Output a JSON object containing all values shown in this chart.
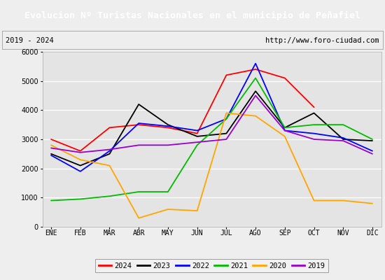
{
  "title": "Evolucion Nº Turistas Nacionales en el municipio de Peñafiel",
  "title_color": "#ffffff",
  "title_bg_color": "#4472c4",
  "subtitle_left": "2019 - 2024",
  "subtitle_right": "http://www.foro-ciudad.com",
  "months": [
    "ENE",
    "FEB",
    "MAR",
    "ABR",
    "MAY",
    "JUN",
    "JUL",
    "AGO",
    "SEP",
    "OCT",
    "NOV",
    "DIC"
  ],
  "series": {
    "2024": {
      "color": "#ff0000",
      "data": [
        3000,
        2600,
        3400,
        3500,
        3400,
        3200,
        5200,
        5400,
        5100,
        4100,
        null,
        null
      ]
    },
    "2023": {
      "color": "#000000",
      "data": [
        2500,
        2100,
        2500,
        4200,
        3500,
        3100,
        3200,
        4650,
        3400,
        3900,
        3000,
        2950
      ]
    },
    "2022": {
      "color": "#0000ff",
      "data": [
        2450,
        1900,
        2600,
        3550,
        3450,
        3300,
        3700,
        5600,
        3300,
        3200,
        3050,
        2600
      ]
    },
    "2021": {
      "color": "#00bb00",
      "data": [
        900,
        950,
        1050,
        1200,
        1200,
        2800,
        3700,
        5100,
        3400,
        3500,
        3500,
        3000
      ]
    },
    "2020": {
      "color": "#ffa500",
      "data": [
        2800,
        2300,
        2100,
        300,
        600,
        550,
        3900,
        3800,
        3100,
        900,
        900,
        800
      ]
    },
    "2019": {
      "color": "#9900cc",
      "data": [
        2700,
        2550,
        2650,
        2800,
        2800,
        2900,
        3000,
        4500,
        3300,
        3000,
        2950,
        2500
      ]
    }
  },
  "ylim": [
    0,
    6000
  ],
  "yticks": [
    0,
    1000,
    2000,
    3000,
    4000,
    5000,
    6000
  ],
  "bg_color": "#eeeeee",
  "plot_bg_color": "#e4e4e4",
  "grid_color": "#ffffff",
  "legend_order": [
    "2024",
    "2023",
    "2022",
    "2021",
    "2020",
    "2019"
  ],
  "fig_width": 5.5,
  "fig_height": 4.0,
  "fig_dpi": 100
}
